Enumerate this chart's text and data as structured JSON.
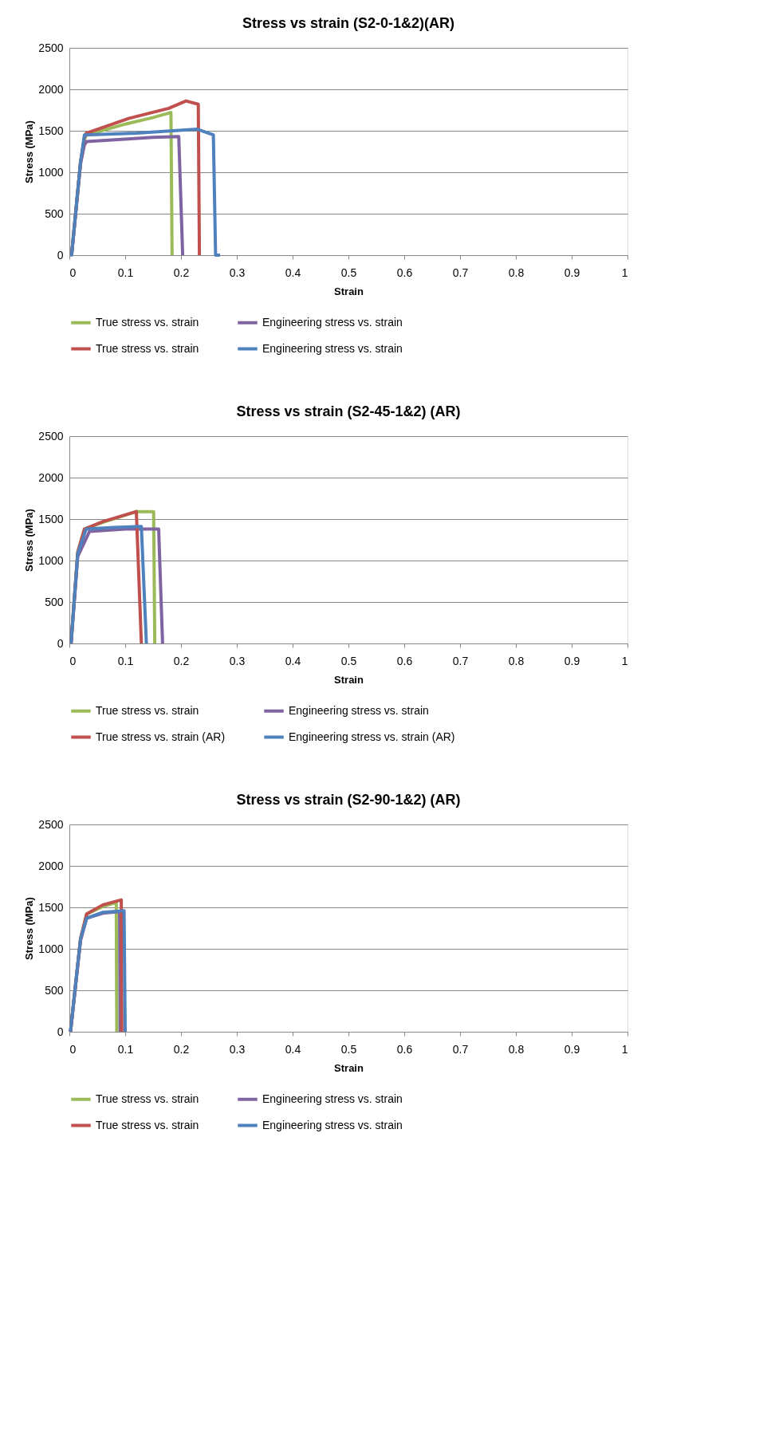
{
  "chart_data": [
    {
      "type": "line",
      "title": "Stress vs strain (S2-0-1&2)(AR)",
      "xlabel": "Strain",
      "ylabel": "Stress (MPa)",
      "xlim": [
        0,
        1
      ],
      "xticks": [
        0,
        0.1,
        0.2,
        0.3,
        0.4,
        0.5,
        0.6,
        0.7,
        0.8,
        0.9,
        1
      ],
      "ylim": [
        0,
        2500
      ],
      "yticks": [
        0,
        500,
        1000,
        1500,
        2000,
        2500
      ],
      "grid": "y",
      "legend": "bottom",
      "marker": "none",
      "line_style": "solid",
      "series": [
        {
          "name": "True stress vs. strain",
          "color": "#9bbb59",
          "x": [
            0.004,
            0.02,
            0.027,
            0.031,
            0.1,
            0.15,
            0.182,
            0.184
          ],
          "values": [
            0,
            1120,
            1400,
            1450,
            1580,
            1660,
            1720,
            0
          ]
        },
        {
          "name": "Engineering stress vs. strain",
          "color": "#8064a2",
          "x": [
            0.004,
            0.02,
            0.027,
            0.031,
            0.1,
            0.15,
            0.196,
            0.203
          ],
          "values": [
            0,
            1100,
            1330,
            1370,
            1400,
            1420,
            1430,
            0
          ]
        },
        {
          "name": "True stress vs. strain",
          "color": "#c0504d",
          "x": [
            0.004,
            0.02,
            0.027,
            0.03,
            0.107,
            0.178,
            0.209,
            0.231,
            0.233
          ],
          "values": [
            0,
            1120,
            1420,
            1470,
            1650,
            1770,
            1860,
            1820,
            0
          ]
        },
        {
          "name": "Engineering stress vs. strain",
          "color": "#4f81bd",
          "x": [
            0.002,
            0.004,
            0.02,
            0.027,
            0.12,
            0.229,
            0.258,
            0.262,
            0.27
          ],
          "values": [
            0,
            0,
            1120,
            1450,
            1470,
            1520,
            1450,
            0,
            0
          ]
        }
      ]
    },
    {
      "type": "line",
      "title": "Stress vs strain (S2-45-1&2) (AR)",
      "xlabel": "Strain",
      "ylabel": "Stress (MPa)",
      "xlim": [
        0,
        1
      ],
      "xticks": [
        0,
        0.1,
        0.2,
        0.3,
        0.4,
        0.5,
        0.6,
        0.7,
        0.8,
        0.9,
        1
      ],
      "ylim": [
        0,
        2500
      ],
      "yticks": [
        0,
        500,
        1000,
        1500,
        2000,
        2500
      ],
      "grid": "y",
      "legend": "bottom",
      "marker": "none",
      "line_style": "solid",
      "series": [
        {
          "name": "True stress vs. strain",
          "color": "#9bbb59",
          "x": [
            0.003,
            0.015,
            0.027,
            0.06,
            0.12,
            0.151,
            0.153
          ],
          "values": [
            0,
            1100,
            1380,
            1460,
            1590,
            1590,
            0
          ]
        },
        {
          "name": "Engineering stress vs. strain",
          "color": "#8064a2",
          "x": [
            0.003,
            0.015,
            0.036,
            0.1,
            0.16,
            0.167
          ],
          "values": [
            0,
            1050,
            1350,
            1380,
            1380,
            0
          ]
        },
        {
          "name": "True stress vs. strain (AR)",
          "color": "#c0504d",
          "x": [
            0.003,
            0.015,
            0.027,
            0.06,
            0.12,
            0.129
          ],
          "values": [
            0,
            1100,
            1380,
            1470,
            1590,
            0
          ]
        },
        {
          "name": "Engineering stress vs. strain (AR)",
          "color": "#4f81bd",
          "x": [
            0.003,
            0.015,
            0.03,
            0.08,
            0.129,
            0.138
          ],
          "values": [
            0,
            1080,
            1380,
            1400,
            1410,
            0
          ]
        }
      ]
    },
    {
      "type": "line",
      "title": "Stress vs strain (S2-90-1&2) (AR)",
      "xlabel": "Strain",
      "ylabel": "Stress (MPa)",
      "xlim": [
        0,
        1
      ],
      "xticks": [
        0,
        0.1,
        0.2,
        0.3,
        0.4,
        0.5,
        0.6,
        0.7,
        0.8,
        0.9,
        1
      ],
      "ylim": [
        0,
        2500
      ],
      "yticks": [
        0,
        500,
        1000,
        1500,
        2000,
        2500
      ],
      "grid": "y",
      "legend": "bottom",
      "marker": "none",
      "line_style": "solid",
      "series": [
        {
          "name": "True stress vs. strain",
          "color": "#9bbb59",
          "x": [
            0.002,
            0.02,
            0.031,
            0.06,
            0.084,
            0.085
          ],
          "values": [
            0,
            1120,
            1420,
            1510,
            1560,
            0
          ]
        },
        {
          "name": "Engineering stress vs. strain",
          "color": "#8064a2",
          "x": [
            0.002,
            0.02,
            0.031,
            0.06,
            0.09,
            0.091
          ],
          "values": [
            0,
            1100,
            1370,
            1430,
            1450,
            0
          ]
        },
        {
          "name": "True stress vs. strain",
          "color": "#c0504d",
          "x": [
            0.002,
            0.02,
            0.031,
            0.06,
            0.093,
            0.094
          ],
          "values": [
            0,
            1120,
            1420,
            1530,
            1590,
            0
          ]
        },
        {
          "name": "Engineering stress vs. strain",
          "color": "#4f81bd",
          "x": [
            0.002,
            0.02,
            0.031,
            0.06,
            0.098,
            0.1
          ],
          "values": [
            0,
            1120,
            1370,
            1440,
            1460,
            0
          ]
        }
      ]
    }
  ]
}
